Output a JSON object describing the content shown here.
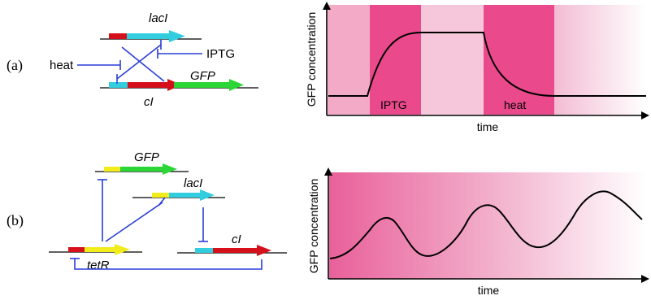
{
  "panels": [
    {
      "label": "(a)"
    },
    {
      "label": "(b)"
    }
  ],
  "circuit_a": {
    "genes": {
      "lacI": "lacI",
      "cI": "cI",
      "GFP": "GFP"
    },
    "inputs": {
      "heat": "heat",
      "iptg": "IPTG"
    }
  },
  "circuit_b": {
    "genes": {
      "GFP": "GFP",
      "lacI": "lacI",
      "tetR": "tetR",
      "cI": "cI"
    }
  },
  "graph_a": {
    "ylabel": "GFP concentration",
    "xlabel": "time",
    "bands": {
      "iptg": "IPTG",
      "heat": "heat"
    }
  },
  "graph_b": {
    "ylabel": "GFP concentration",
    "xlabel": "time"
  },
  "colors": {
    "promoter": "#d5101a",
    "lacI": "#33cde0",
    "cI": "#d5101a",
    "GFP": "#2bd636",
    "tetR": "#f2ec1a",
    "repression": "#2a3ed6",
    "band_dark": "#ea4a8c",
    "band_light": "#f6bfd6"
  }
}
